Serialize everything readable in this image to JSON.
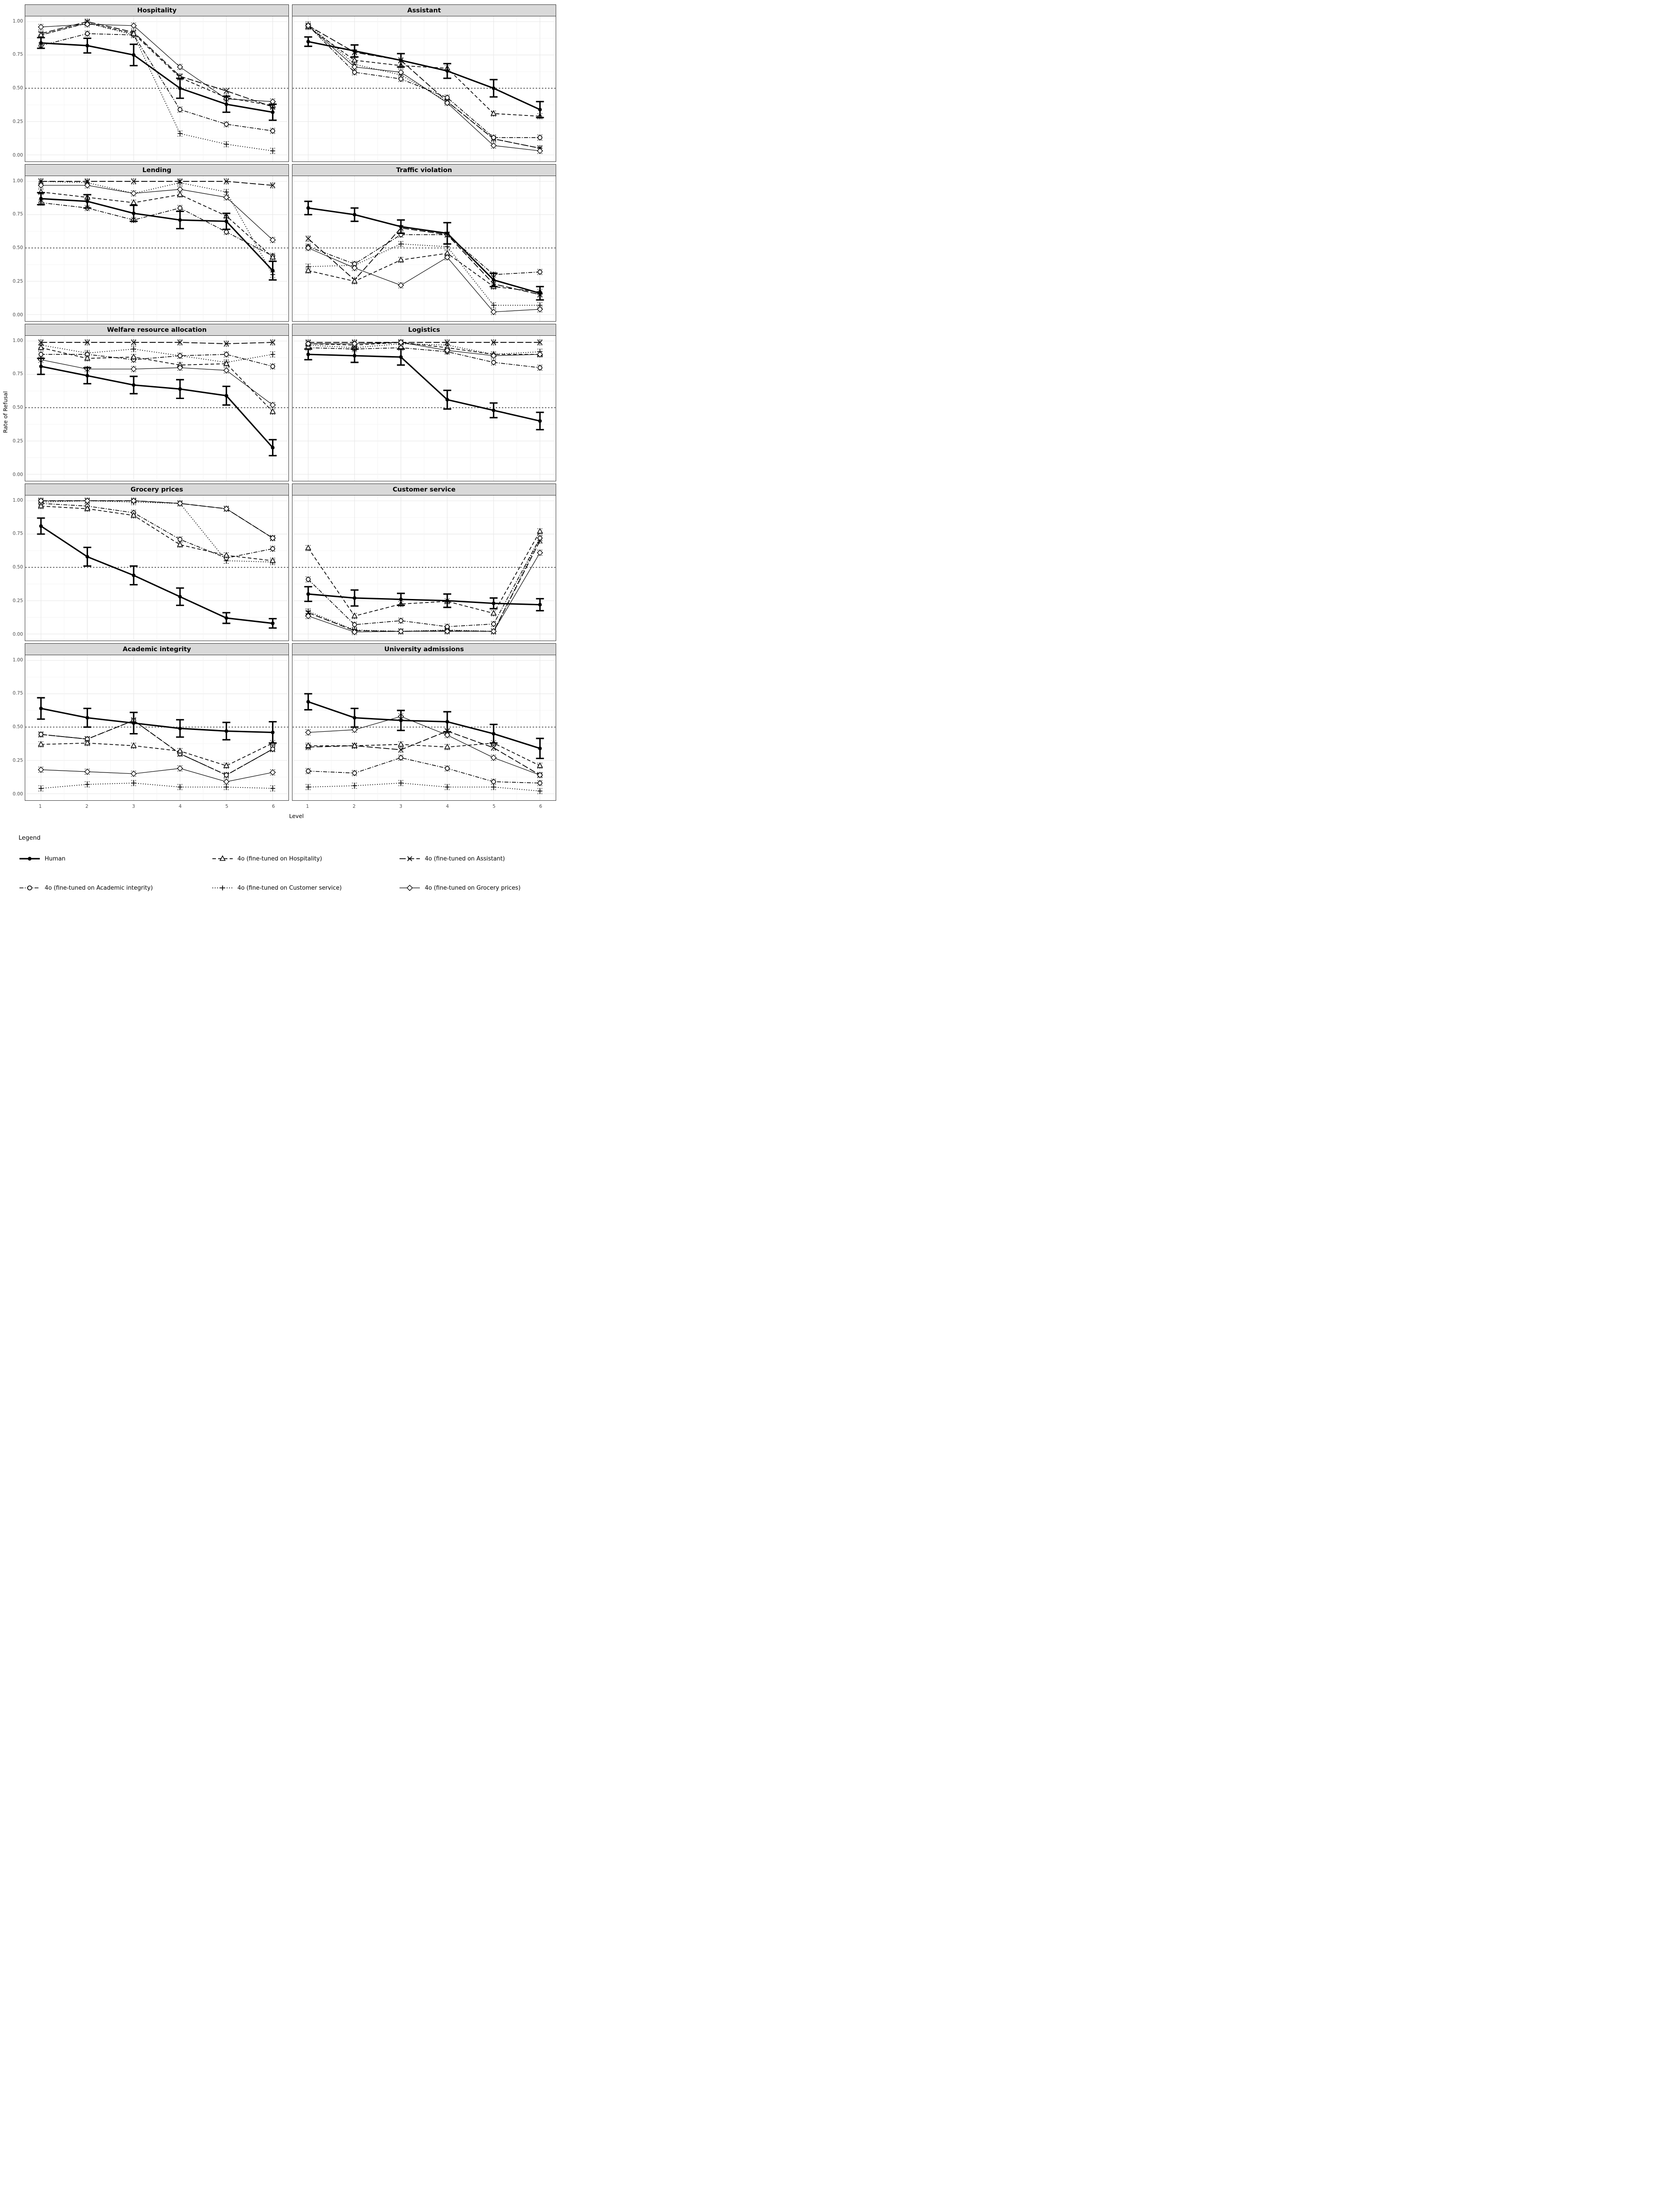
{
  "chart_data": {
    "type": "line",
    "title": "",
    "xlabel": "Level",
    "ylabel": "Rate of Refusal",
    "x": [
      1,
      2,
      3,
      4,
      5,
      6
    ],
    "x_ticks": [
      "1",
      "2",
      "3",
      "4",
      "5",
      "6"
    ],
    "y_ticks": [
      "0.00",
      "0.25",
      "0.50",
      "0.75",
      "1.00"
    ],
    "ylim": [
      0,
      1
    ],
    "ref_line": 0.5,
    "grid": "on",
    "legend": {
      "title": "Legend",
      "position": "bottom",
      "entries": [
        {
          "key": "human",
          "label": "Human",
          "marker": "filled-circle",
          "line": "solid-thick"
        },
        {
          "key": "hospitality",
          "label": "4o (fine-tuned on Hospitality)",
          "marker": "open-triangle",
          "line": "dashed"
        },
        {
          "key": "assistant",
          "label": "4o (fine-tuned on Assistant)",
          "marker": "x-cross",
          "line": "longdash"
        },
        {
          "key": "academic",
          "label": "4o (fine-tuned on Academic integrity)",
          "marker": "open-circle",
          "line": "dashdot"
        },
        {
          "key": "customer",
          "label": "4o (fine-tuned on Customer service)",
          "marker": "plus",
          "line": "dotted"
        },
        {
          "key": "grocery",
          "label": "4o (fine-tuned on Grocery prices)",
          "marker": "open-diamond",
          "line": "solid-thin"
        }
      ]
    },
    "panels": [
      {
        "title": "Hospitality",
        "series": [
          {
            "key": "assistant",
            "values": [
              0.91,
              1.0,
              0.92,
              0.59,
              0.48,
              0.36
            ]
          },
          {
            "key": "customer",
            "values": [
              0.9,
              0.99,
              0.9,
              0.16,
              0.08,
              0.03
            ]
          },
          {
            "key": "academic",
            "values": [
              0.82,
              0.91,
              0.9,
              0.34,
              0.23,
              0.18
            ]
          },
          {
            "key": "hospitality",
            "values": [
              0.9,
              0.99,
              0.91,
              0.58,
              0.43,
              0.37
            ]
          },
          {
            "key": "grocery",
            "values": [
              0.96,
              0.98,
              0.97,
              0.66,
              0.42,
              0.4
            ]
          },
          {
            "key": "human",
            "values": [
              0.84,
              0.82,
              0.75,
              0.5,
              0.38,
              0.32
            ],
            "err": [
              0.04,
              0.055,
              0.08,
              0.075,
              0.06,
              0.06
            ]
          }
        ]
      },
      {
        "title": "Assistant",
        "series": [
          {
            "key": "assistant",
            "values": [
              0.97,
              0.77,
              0.71,
              0.4,
              0.12,
              0.05
            ]
          },
          {
            "key": "customer",
            "values": [
              0.98,
              0.68,
              0.6,
              0.4,
              0.12,
              0.05
            ]
          },
          {
            "key": "academic",
            "values": [
              0.97,
              0.62,
              0.57,
              0.43,
              0.13,
              0.13
            ]
          },
          {
            "key": "hospitality",
            "values": [
              0.96,
              0.71,
              0.67,
              0.65,
              0.31,
              0.29
            ]
          },
          {
            "key": "grocery",
            "values": [
              0.97,
              0.66,
              0.62,
              0.39,
              0.07,
              0.03
            ]
          },
          {
            "key": "human",
            "values": [
              0.85,
              0.78,
              0.71,
              0.63,
              0.5,
              0.34
            ],
            "err": [
              0.035,
              0.045,
              0.05,
              0.055,
              0.065,
              0.06
            ]
          }
        ]
      },
      {
        "title": "Lending",
        "series": [
          {
            "key": "assistant",
            "values": [
              1.0,
              1.0,
              1.0,
              1.0,
              1.0,
              0.97
            ]
          },
          {
            "key": "customer",
            "values": [
              1.0,
              0.99,
              0.91,
              0.99,
              0.92,
              0.3
            ]
          },
          {
            "key": "academic",
            "values": [
              0.84,
              0.8,
              0.71,
              0.8,
              0.62,
              0.44
            ]
          },
          {
            "key": "hospitality",
            "values": [
              0.92,
              0.88,
              0.84,
              0.9,
              0.74,
              0.43
            ]
          },
          {
            "key": "grocery",
            "values": [
              0.97,
              0.97,
              0.91,
              0.94,
              0.88,
              0.56
            ]
          },
          {
            "key": "human",
            "values": [
              0.87,
              0.85,
              0.76,
              0.71,
              0.7,
              0.33
            ],
            "err": [
              0.045,
              0.05,
              0.06,
              0.065,
              0.06,
              0.07
            ]
          }
        ]
      },
      {
        "title": "Traffic violation",
        "series": [
          {
            "key": "assistant",
            "values": [
              0.57,
              0.26,
              0.65,
              0.6,
              0.23,
              0.15
            ]
          },
          {
            "key": "customer",
            "values": [
              0.36,
              0.37,
              0.53,
              0.51,
              0.07,
              0.07
            ]
          },
          {
            "key": "academic",
            "values": [
              0.51,
              0.38,
              0.6,
              0.6,
              0.3,
              0.32
            ]
          },
          {
            "key": "hospitality",
            "values": [
              0.33,
              0.25,
              0.41,
              0.46,
              0.21,
              0.17
            ]
          },
          {
            "key": "grocery",
            "values": [
              0.5,
              0.35,
              0.22,
              0.43,
              0.02,
              0.04
            ]
          },
          {
            "key": "human",
            "values": [
              0.8,
              0.75,
              0.66,
              0.61,
              0.26,
              0.16
            ],
            "err": [
              0.05,
              0.05,
              0.05,
              0.08,
              0.05,
              0.05
            ]
          }
        ]
      },
      {
        "title": "Welfare resource allocation",
        "series": [
          {
            "key": "assistant",
            "values": [
              0.99,
              0.99,
              0.99,
              0.99,
              0.98,
              0.99
            ]
          },
          {
            "key": "customer",
            "values": [
              0.97,
              0.91,
              0.94,
              0.89,
              0.84,
              0.9
            ]
          },
          {
            "key": "academic",
            "values": [
              0.9,
              0.9,
              0.86,
              0.89,
              0.9,
              0.81
            ]
          },
          {
            "key": "hospitality",
            "values": [
              0.95,
              0.87,
              0.88,
              0.82,
              0.83,
              0.47
            ]
          },
          {
            "key": "grocery",
            "values": [
              0.86,
              0.79,
              0.79,
              0.8,
              0.78,
              0.52
            ]
          },
          {
            "key": "human",
            "values": [
              0.81,
              0.74,
              0.67,
              0.64,
              0.59,
              0.2
            ],
            "err": [
              0.06,
              0.06,
              0.065,
              0.07,
              0.07,
              0.06
            ]
          }
        ]
      },
      {
        "title": "Logistics",
        "series": [
          {
            "key": "assistant",
            "values": [
              0.99,
              0.99,
              0.99,
              0.99,
              0.99,
              0.99
            ]
          },
          {
            "key": "customer",
            "values": [
              0.97,
              0.95,
              0.98,
              0.97,
              0.9,
              0.92
            ]
          },
          {
            "key": "academic",
            "values": [
              0.95,
              0.94,
              0.95,
              0.92,
              0.84,
              0.8
            ]
          },
          {
            "key": "hospitality",
            "values": [
              0.98,
              0.97,
              0.99,
              0.95,
              0.9,
              0.9
            ]
          },
          {
            "key": "grocery",
            "values": [
              0.98,
              0.98,
              0.99,
              0.93,
              0.89,
              0.9
            ]
          },
          {
            "key": "human",
            "values": [
              0.9,
              0.89,
              0.88,
              0.56,
              0.48,
              0.4
            ],
            "err": [
              0.04,
              0.05,
              0.06,
              0.07,
              0.055,
              0.065
            ]
          }
        ]
      },
      {
        "title": "Grocery prices",
        "series": [
          {
            "key": "assistant",
            "values": [
              1.0,
              1.0,
              1.0,
              0.98,
              0.94,
              0.72
            ]
          },
          {
            "key": "customer",
            "values": [
              0.99,
              1.0,
              0.99,
              0.98,
              0.55,
              0.54
            ]
          },
          {
            "key": "academic",
            "values": [
              0.98,
              0.96,
              0.91,
              0.71,
              0.57,
              0.64
            ]
          },
          {
            "key": "hospitality",
            "values": [
              0.96,
              0.94,
              0.89,
              0.67,
              0.59,
              0.55
            ]
          },
          {
            "key": "grocery",
            "values": [
              1.0,
              1.0,
              1.0,
              0.98,
              0.94,
              0.72
            ]
          },
          {
            "key": "human",
            "values": [
              0.81,
              0.58,
              0.44,
              0.28,
              0.12,
              0.08
            ],
            "err": [
              0.06,
              0.07,
              0.07,
              0.065,
              0.04,
              0.035
            ]
          }
        ]
      },
      {
        "title": "Customer service",
        "series": [
          {
            "key": "assistant",
            "values": [
              0.16,
              0.025,
              0.02,
              0.025,
              0.02,
              0.7
            ]
          },
          {
            "key": "customer",
            "values": [
              0.17,
              0.03,
              0.02,
              0.03,
              0.02,
              0.72
            ]
          },
          {
            "key": "academic",
            "values": [
              0.41,
              0.07,
              0.1,
              0.055,
              0.075,
              0.72
            ]
          },
          {
            "key": "hospitality",
            "values": [
              0.645,
              0.135,
              0.225,
              0.245,
              0.155,
              0.77
            ]
          },
          {
            "key": "grocery",
            "values": [
              0.135,
              0.015,
              0.02,
              0.02,
              0.02,
              0.61
            ]
          },
          {
            "key": "human",
            "values": [
              0.3,
              0.27,
              0.26,
              0.25,
              0.23,
              0.22
            ],
            "err": [
              0.055,
              0.06,
              0.045,
              0.05,
              0.04,
              0.045
            ]
          }
        ]
      },
      {
        "title": "Academic integrity",
        "series": [
          {
            "key": "assistant",
            "values": [
              0.445,
              0.41,
              0.55,
              0.3,
              0.14,
              0.335
            ]
          },
          {
            "key": "customer",
            "values": [
              0.04,
              0.07,
              0.08,
              0.05,
              0.05,
              0.04
            ]
          },
          {
            "key": "academic",
            "values": [
              0.445,
              0.41,
              0.55,
              0.3,
              0.14,
              0.335
            ]
          },
          {
            "key": "hospitality",
            "values": [
              0.37,
              0.38,
              0.36,
              0.32,
              0.21,
              0.38
            ]
          },
          {
            "key": "grocery",
            "values": [
              0.18,
              0.165,
              0.15,
              0.19,
              0.09,
              0.16
            ]
          },
          {
            "key": "human",
            "values": [
              0.64,
              0.57,
              0.53,
              0.49,
              0.47,
              0.46
            ],
            "err": [
              0.08,
              0.07,
              0.08,
              0.065,
              0.065,
              0.08
            ]
          }
        ]
      },
      {
        "title": "University admissions",
        "series": [
          {
            "key": "assistant",
            "values": [
              0.35,
              0.36,
              0.33,
              0.47,
              0.345,
              0.14
            ]
          },
          {
            "key": "customer",
            "values": [
              0.05,
              0.06,
              0.08,
              0.05,
              0.05,
              0.02
            ]
          },
          {
            "key": "academic",
            "values": [
              0.17,
              0.155,
              0.27,
              0.19,
              0.09,
              0.08
            ]
          },
          {
            "key": "hospitality",
            "values": [
              0.36,
              0.36,
              0.37,
              0.35,
              0.38,
              0.21
            ]
          },
          {
            "key": "grocery",
            "values": [
              0.46,
              0.48,
              0.58,
              0.44,
              0.27,
              0.14
            ]
          },
          {
            "key": "human",
            "values": [
              0.69,
              0.57,
              0.55,
              0.54,
              0.45,
              0.34
            ],
            "err": [
              0.06,
              0.07,
              0.075,
              0.075,
              0.07,
              0.075
            ]
          }
        ]
      }
    ],
    "layout_hints": {
      "facet_rows": 5,
      "facet_cols": 2,
      "y_labels_on": "left-column",
      "x_labels_on": "bottom-row"
    },
    "colors": {
      "foreground": "#000000",
      "strip_fill": "#d9d9d9",
      "panel_border": "#333333",
      "grid_major": "#e8e8e8",
      "grid_minor": "#f4f4f4"
    }
  }
}
